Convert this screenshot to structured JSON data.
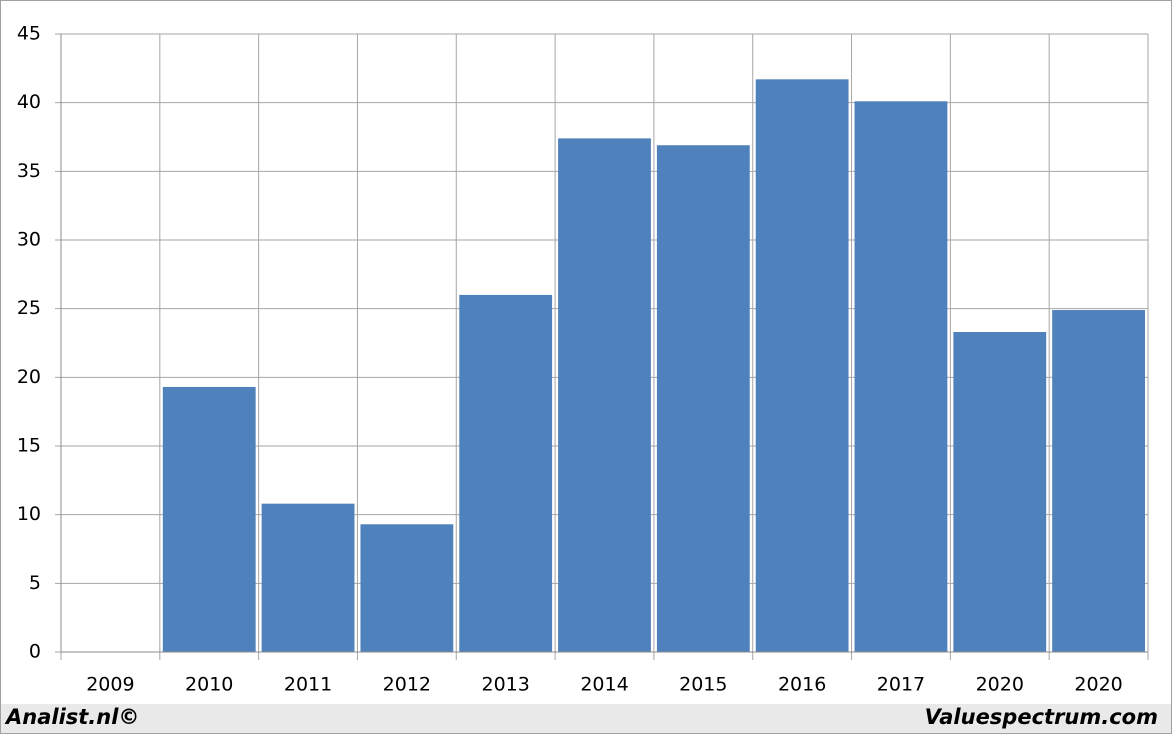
{
  "chart_data": {
    "type": "bar",
    "categories": [
      "2009",
      "2010",
      "2011",
      "2012",
      "2013",
      "2014",
      "2015",
      "2016",
      "2017",
      "2020",
      "2020"
    ],
    "values": [
      null,
      19.3,
      10.8,
      9.3,
      26,
      37.4,
      36.9,
      41.7,
      40.1,
      23.3,
      24.9
    ],
    "color": "#4f81bd",
    "ylim": [
      0,
      45
    ],
    "yticks": [
      0,
      5,
      10,
      15,
      20,
      25,
      30,
      35,
      40,
      45
    ],
    "grid": true
  },
  "footer": {
    "left": "Analist.nl©",
    "right": "Valuespectrum.com"
  }
}
